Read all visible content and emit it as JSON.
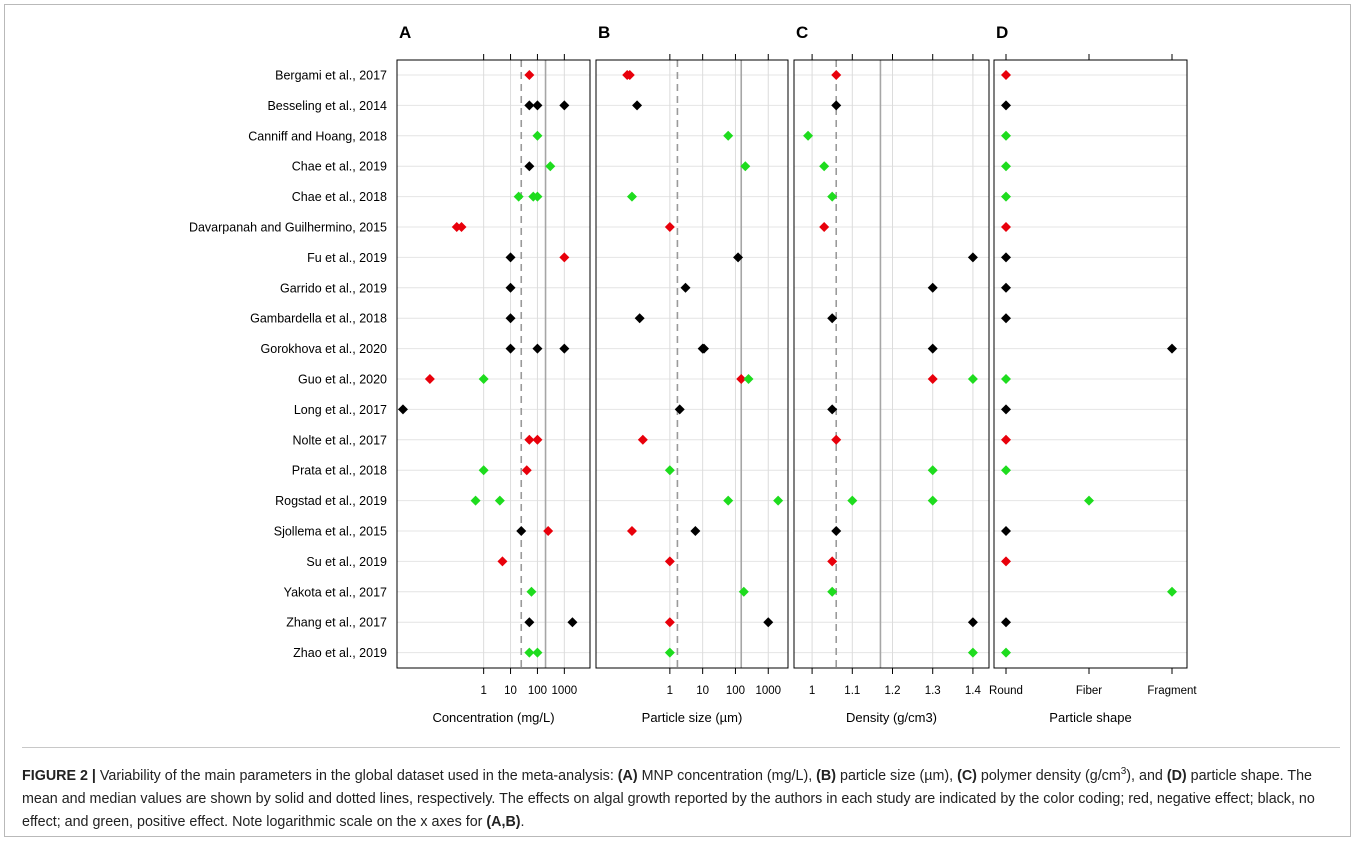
{
  "caption": {
    "lead": "FIGURE 2 |",
    "text_parts": [
      {
        "t": " Variability of the main parameters in the global dataset used in the meta-analysis: ",
        "b": false
      },
      {
        "t": "(A)",
        "b": true
      },
      {
        "t": " MNP concentration (mg/L), ",
        "b": false
      },
      {
        "t": "(B)",
        "b": true
      },
      {
        "t": " particle size (µm), ",
        "b": false
      },
      {
        "t": "(C)",
        "b": true
      },
      {
        "t": " polymer density (g/cm",
        "b": false
      },
      {
        "t": "3",
        "b": false,
        "sup": true
      },
      {
        "t": "), and ",
        "b": false
      },
      {
        "t": "(D)",
        "b": true
      },
      {
        "t": " particle shape. The mean and median values are shown by solid and dotted lines, respectively. The effects on algal growth reported by the authors in each study are indicated by the color coding; red, negative effect; black, no effect; and green, positive effect. Note logarithmic scale on the x axes for ",
        "b": false
      },
      {
        "t": "(A,B)",
        "b": true
      },
      {
        "t": ".",
        "b": false
      }
    ]
  },
  "colors": {
    "red": "#e8000b",
    "black": "#000000",
    "green": "#1edc1e"
  },
  "chart_data": [
    {
      "panel": "A",
      "type": "scatter",
      "xlabel": "Concentration (mg/L)",
      "scale": "log",
      "xlim": [
        0.0006,
        9000
      ],
      "ticks": [
        1,
        10,
        100,
        1000
      ],
      "tick_labels": [
        "1",
        "10",
        "100",
        "1000"
      ],
      "mean": 200,
      "median": 25,
      "categories": [
        "Bergami et al., 2017",
        "Besseling et al., 2014",
        "Canniff and Hoang, 2018",
        "Chae et al., 2019",
        "Chae et al., 2018",
        "Davarpanah and Guilhermino, 2015",
        "Fu et al., 2019",
        "Garrido et al., 2019",
        "Gambardella et al., 2018",
        "Gorokhova et al., 2020",
        "Guo et al., 2020",
        "Long et al., 2017",
        "Nolte et al., 2017",
        "Prata et al., 2018",
        "Rogstad et al., 2019",
        "Sjollema et al., 2015",
        "Su et al., 2019",
        "Yakota et al., 2017",
        "Zhang et al., 2017",
        "Zhao et al., 2019"
      ],
      "points": [
        {
          "row": 0,
          "x": 50,
          "effect": "red"
        },
        {
          "row": 1,
          "x": 50,
          "effect": "black"
        },
        {
          "row": 1,
          "x": 100,
          "effect": "black"
        },
        {
          "row": 1,
          "x": 1000,
          "effect": "black"
        },
        {
          "row": 2,
          "x": 100,
          "effect": "green"
        },
        {
          "row": 3,
          "x": 50,
          "effect": "black"
        },
        {
          "row": 3,
          "x": 300,
          "effect": "green"
        },
        {
          "row": 4,
          "x": 20,
          "effect": "green"
        },
        {
          "row": 4,
          "x": 70,
          "effect": "green"
        },
        {
          "row": 4,
          "x": 100,
          "effect": "green"
        },
        {
          "row": 5,
          "x": 0.1,
          "effect": "red"
        },
        {
          "row": 5,
          "x": 0.15,
          "effect": "red"
        },
        {
          "row": 6,
          "x": 10,
          "effect": "black"
        },
        {
          "row": 6,
          "x": 1000,
          "effect": "red"
        },
        {
          "row": 7,
          "x": 10,
          "effect": "black"
        },
        {
          "row": 8,
          "x": 10,
          "effect": "black"
        },
        {
          "row": 9,
          "x": 10,
          "effect": "black"
        },
        {
          "row": 9,
          "x": 100,
          "effect": "black"
        },
        {
          "row": 9,
          "x": 1000,
          "effect": "black"
        },
        {
          "row": 10,
          "x": 0.01,
          "effect": "red"
        },
        {
          "row": 10,
          "x": 1,
          "effect": "green"
        },
        {
          "row": 11,
          "x": 0.001,
          "effect": "black"
        },
        {
          "row": 12,
          "x": 50,
          "effect": "red"
        },
        {
          "row": 12,
          "x": 100,
          "effect": "red"
        },
        {
          "row": 13,
          "x": 1,
          "effect": "green"
        },
        {
          "row": 13,
          "x": 40,
          "effect": "red"
        },
        {
          "row": 14,
          "x": 0.5,
          "effect": "green"
        },
        {
          "row": 14,
          "x": 4,
          "effect": "green"
        },
        {
          "row": 15,
          "x": 25,
          "effect": "black"
        },
        {
          "row": 15,
          "x": 250,
          "effect": "red"
        },
        {
          "row": 16,
          "x": 5,
          "effect": "red"
        },
        {
          "row": 17,
          "x": 60,
          "effect": "green"
        },
        {
          "row": 18,
          "x": 50,
          "effect": "black"
        },
        {
          "row": 18,
          "x": 2000,
          "effect": "black"
        },
        {
          "row": 19,
          "x": 50,
          "effect": "green"
        },
        {
          "row": 19,
          "x": 100,
          "effect": "green"
        }
      ]
    },
    {
      "panel": "B",
      "type": "scatter",
      "xlabel": "Particle size (µm)",
      "scale": "log",
      "xlim": [
        0.0056,
        4000
      ],
      "ticks": [
        1,
        10,
        100,
        1000
      ],
      "tick_labels": [
        "1",
        "10",
        "100",
        "1000"
      ],
      "mean": 150,
      "median": 1.7,
      "points": [
        {
          "row": 0,
          "x": 0.05,
          "effect": "red"
        },
        {
          "row": 0,
          "x": 0.06,
          "effect": "red"
        },
        {
          "row": 1,
          "x": 0.1,
          "effect": "black"
        },
        {
          "row": 2,
          "x": 60,
          "effect": "green"
        },
        {
          "row": 3,
          "x": 200,
          "effect": "green"
        },
        {
          "row": 4,
          "x": 0.07,
          "effect": "green"
        },
        {
          "row": 5,
          "x": 1,
          "effect": "red"
        },
        {
          "row": 6,
          "x": 120,
          "effect": "black"
        },
        {
          "row": 7,
          "x": 3,
          "effect": "black"
        },
        {
          "row": 8,
          "x": 0.12,
          "effect": "black"
        },
        {
          "row": 9,
          "x": 10,
          "effect": "black"
        },
        {
          "row": 9,
          "x": 11,
          "effect": "black"
        },
        {
          "row": 10,
          "x": 150,
          "effect": "red"
        },
        {
          "row": 10,
          "x": 250,
          "effect": "green"
        },
        {
          "row": 11,
          "x": 2,
          "effect": "black"
        },
        {
          "row": 12,
          "x": 0.15,
          "effect": "red"
        },
        {
          "row": 13,
          "x": 1,
          "effect": "green"
        },
        {
          "row": 14,
          "x": 60,
          "effect": "green"
        },
        {
          "row": 14,
          "x": 2000,
          "effect": "green"
        },
        {
          "row": 15,
          "x": 0.07,
          "effect": "red"
        },
        {
          "row": 15,
          "x": 6,
          "effect": "black"
        },
        {
          "row": 16,
          "x": 1,
          "effect": "red"
        },
        {
          "row": 17,
          "x": 180,
          "effect": "green"
        },
        {
          "row": 18,
          "x": 1,
          "effect": "red"
        },
        {
          "row": 18,
          "x": 1000,
          "effect": "black"
        },
        {
          "row": 19,
          "x": 1,
          "effect": "green"
        }
      ]
    },
    {
      "panel": "C",
      "type": "scatter",
      "xlabel": "Density (g/cm3)",
      "scale": "linear",
      "xlim": [
        0.955,
        1.44
      ],
      "ticks": [
        1,
        1.1,
        1.2,
        1.3,
        1.4
      ],
      "tick_labels": [
        "1",
        "1.1",
        "1.2",
        "1.3",
        "1.4"
      ],
      "mean": 1.17,
      "median": 1.06,
      "points": [
        {
          "row": 0,
          "x": 1.06,
          "effect": "red"
        },
        {
          "row": 1,
          "x": 1.06,
          "effect": "black"
        },
        {
          "row": 2,
          "x": 0.99,
          "effect": "green"
        },
        {
          "row": 3,
          "x": 1.03,
          "effect": "green"
        },
        {
          "row": 4,
          "x": 1.05,
          "effect": "green"
        },
        {
          "row": 5,
          "x": 1.03,
          "effect": "red"
        },
        {
          "row": 6,
          "x": 1.4,
          "effect": "black"
        },
        {
          "row": 7,
          "x": 1.3,
          "effect": "black"
        },
        {
          "row": 8,
          "x": 1.05,
          "effect": "black"
        },
        {
          "row": 9,
          "x": 1.3,
          "effect": "black"
        },
        {
          "row": 10,
          "x": 1.3,
          "effect": "red"
        },
        {
          "row": 10,
          "x": 1.4,
          "effect": "green"
        },
        {
          "row": 11,
          "x": 1.05,
          "effect": "black"
        },
        {
          "row": 12,
          "x": 1.06,
          "effect": "red"
        },
        {
          "row": 13,
          "x": 1.3,
          "effect": "green"
        },
        {
          "row": 14,
          "x": 1.1,
          "effect": "green"
        },
        {
          "row": 14,
          "x": 1.3,
          "effect": "green"
        },
        {
          "row": 15,
          "x": 1.06,
          "effect": "black"
        },
        {
          "row": 16,
          "x": 1.05,
          "effect": "red"
        },
        {
          "row": 17,
          "x": 1.05,
          "effect": "green"
        },
        {
          "row": 18,
          "x": 1.4,
          "effect": "black"
        },
        {
          "row": 19,
          "x": 1.4,
          "effect": "green"
        }
      ]
    },
    {
      "panel": "D",
      "type": "scatter",
      "xlabel": "Particle shape",
      "scale": "categorical",
      "categories_x": [
        "Round",
        "Fiber",
        "Fragment"
      ],
      "points": [
        {
          "row": 0,
          "x": "Round",
          "effect": "red"
        },
        {
          "row": 1,
          "x": "Round",
          "effect": "black"
        },
        {
          "row": 2,
          "x": "Round",
          "effect": "green"
        },
        {
          "row": 3,
          "x": "Round",
          "effect": "green"
        },
        {
          "row": 4,
          "x": "Round",
          "effect": "green"
        },
        {
          "row": 5,
          "x": "Round",
          "effect": "red"
        },
        {
          "row": 6,
          "x": "Round",
          "effect": "black"
        },
        {
          "row": 7,
          "x": "Round",
          "effect": "black"
        },
        {
          "row": 8,
          "x": "Round",
          "effect": "black"
        },
        {
          "row": 9,
          "x": "Fragment",
          "effect": "black"
        },
        {
          "row": 10,
          "x": "Round",
          "effect": "green"
        },
        {
          "row": 11,
          "x": "Round",
          "effect": "black"
        },
        {
          "row": 12,
          "x": "Round",
          "effect": "red"
        },
        {
          "row": 13,
          "x": "Round",
          "effect": "green"
        },
        {
          "row": 14,
          "x": "Fiber",
          "effect": "green"
        },
        {
          "row": 15,
          "x": "Round",
          "effect": "black"
        },
        {
          "row": 16,
          "x": "Round",
          "effect": "red"
        },
        {
          "row": 17,
          "x": "Fragment",
          "effect": "green"
        },
        {
          "row": 18,
          "x": "Round",
          "effect": "black"
        },
        {
          "row": 19,
          "x": "Round",
          "effect": "green"
        }
      ]
    }
  ]
}
